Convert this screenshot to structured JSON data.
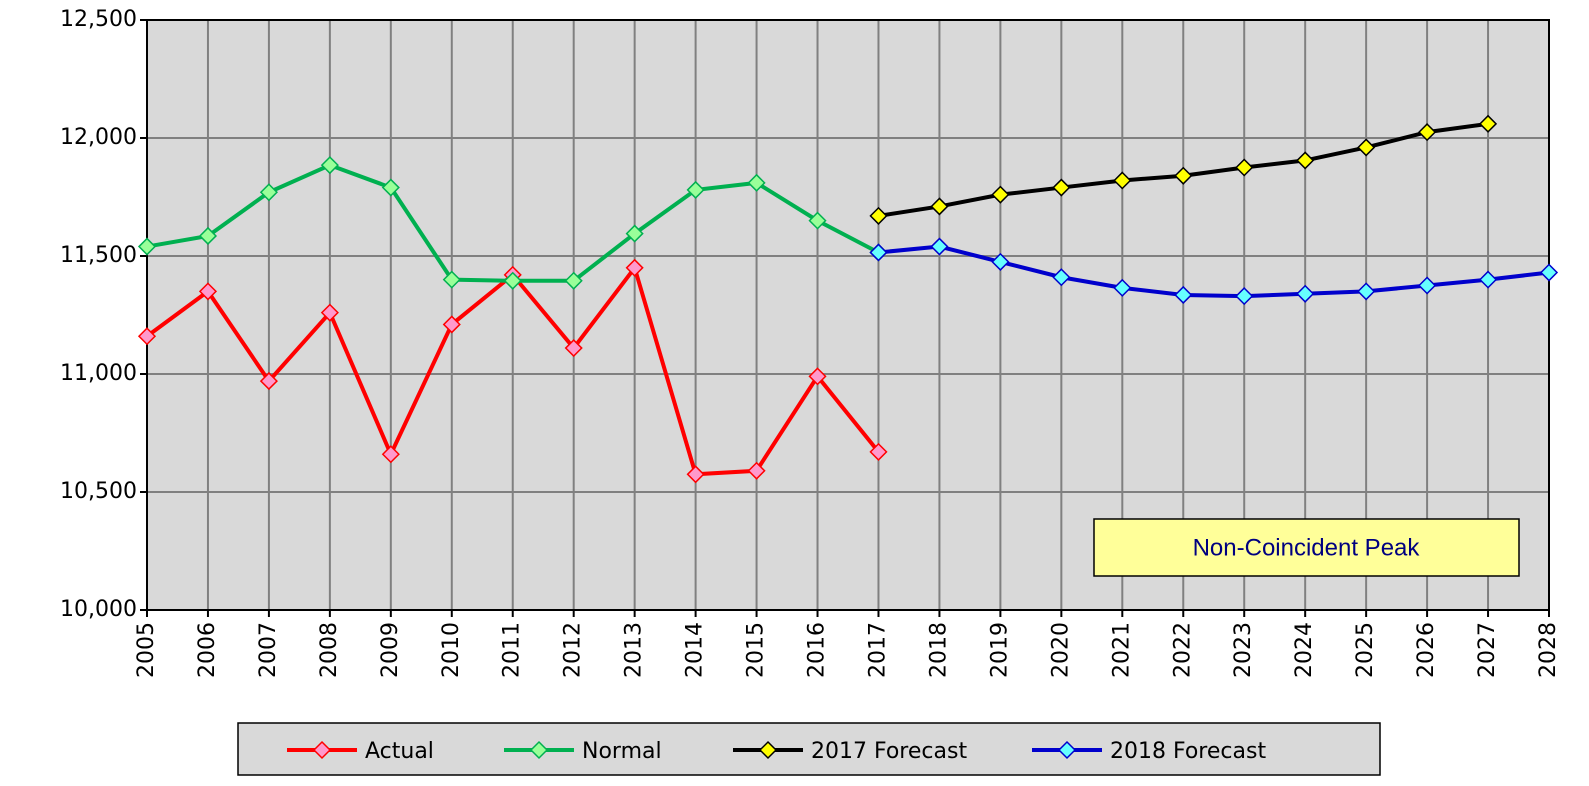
{
  "chart_data": {
    "type": "line",
    "x": [
      2005,
      2006,
      2007,
      2008,
      2009,
      2010,
      2011,
      2012,
      2013,
      2014,
      2015,
      2016,
      2017,
      2018,
      2019,
      2020,
      2021,
      2022,
      2023,
      2024,
      2025,
      2026,
      2027,
      2028
    ],
    "xlim": [
      2005,
      2028
    ],
    "xticks": [
      2005,
      2006,
      2007,
      2008,
      2009,
      2010,
      2011,
      2012,
      2013,
      2014,
      2015,
      2016,
      2017,
      2018,
      2019,
      2020,
      2021,
      2022,
      2023,
      2024,
      2025,
      2026,
      2027,
      2028
    ],
    "ylim": [
      10000,
      12500
    ],
    "yticks": [
      {
        "value": 10000,
        "label": "10,000"
      },
      {
        "value": 10500,
        "label": "10,500"
      },
      {
        "value": 11000,
        "label": "11,000"
      },
      {
        "value": 11500,
        "label": "11,500"
      },
      {
        "value": 12000,
        "label": "12,000"
      },
      {
        "value": 12500,
        "label": "12,500"
      }
    ],
    "grid": true,
    "annotation": "Non-Coincident Peak",
    "series": [
      {
        "name": "Actual",
        "color": "#ff0000",
        "marker_color": "#ff99cc",
        "values": [
          11160,
          11350,
          10970,
          11260,
          10660,
          11210,
          11420,
          11110,
          11450,
          10575,
          10590,
          10990,
          10670,
          null,
          null,
          null,
          null,
          null,
          null,
          null,
          null,
          null,
          null,
          null
        ]
      },
      {
        "name": "Normal",
        "color": "#00b050",
        "marker_color": "#99ff99",
        "values": [
          11540,
          11585,
          11770,
          11885,
          11790,
          11400,
          11395,
          11395,
          11595,
          11780,
          11810,
          11650,
          11515,
          null,
          null,
          null,
          null,
          null,
          null,
          null,
          null,
          null,
          null,
          null
        ]
      },
      {
        "name": "2017 Forecast",
        "color": "#000000",
        "marker_color": "#ffff00",
        "values": [
          null,
          null,
          null,
          null,
          null,
          null,
          null,
          null,
          null,
          null,
          null,
          null,
          11670,
          11710,
          11760,
          11790,
          11820,
          11840,
          11875,
          11905,
          11960,
          12025,
          12060,
          null
        ]
      },
      {
        "name": "2018 Forecast",
        "color": "#0000cc",
        "marker_color": "#66ffff",
        "values": [
          null,
          null,
          null,
          null,
          null,
          null,
          null,
          null,
          null,
          null,
          null,
          null,
          11515,
          11540,
          11475,
          11410,
          11365,
          11335,
          11330,
          11340,
          11350,
          11375,
          11400,
          11430
        ]
      }
    ]
  }
}
